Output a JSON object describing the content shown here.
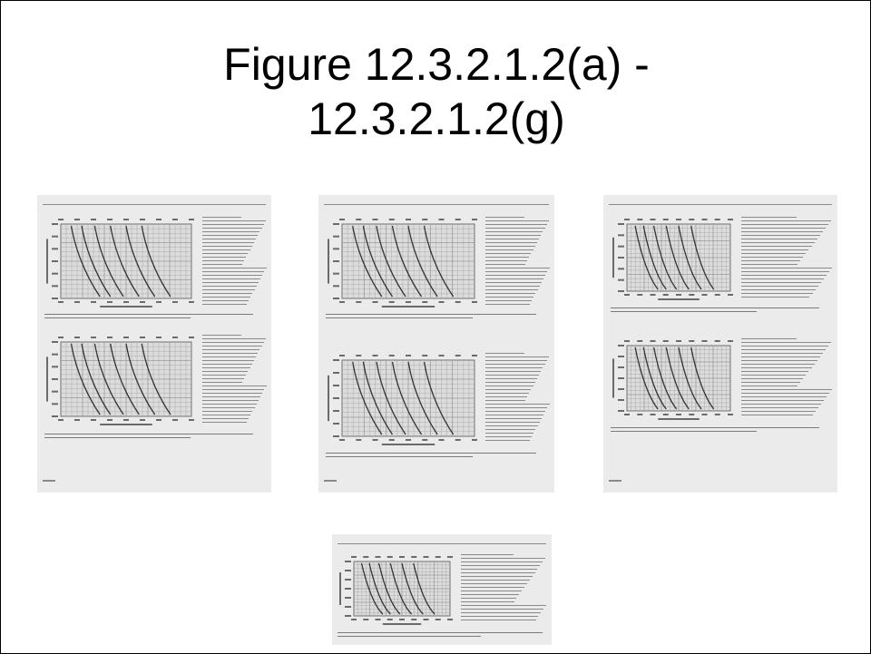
{
  "slide": {
    "title_line1": "Figure 12.3.2.1.2(a) -",
    "title_line2": "12.3.2.1.2(g)"
  },
  "thumbnails": [
    {
      "id": "a",
      "style": "wide-legend",
      "has_footer": true
    },
    {
      "id": "b",
      "style": "wide-legend-lowered",
      "has_footer": true
    },
    {
      "id": "c",
      "style": "narrow-legend",
      "has_footer": true
    },
    {
      "id": "d",
      "style": "wide-legend",
      "has_footer": false
    },
    {
      "id": "e",
      "style": "wide-legend",
      "has_footer": false
    },
    {
      "id": "f",
      "style": "narrow-legend",
      "has_footer": false
    },
    {
      "id": "g",
      "style": "narrow-legend",
      "has_footer": false
    }
  ]
}
